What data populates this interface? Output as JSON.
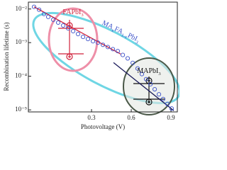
{
  "chart_data": {
    "type": "scatter",
    "x_label": "Photovoltage (V)",
    "y_label": "Recombination lifetime (s)",
    "xlim": [
      -0.177,
      0.948
    ],
    "xticks": [
      0.3,
      0.6,
      0.9
    ],
    "ylim": [
      8.7e-06,
      0.016
    ],
    "y_log": true,
    "yticks": [
      {
        "value": 1e-05,
        "label": "10⁻⁵"
      },
      {
        "value": 0.0001,
        "label": "10⁻⁴"
      },
      {
        "value": 0.001,
        "label": "10⁻³"
      },
      {
        "value": 0.01,
        "label": "10⁻²"
      }
    ],
    "series": [
      {
        "color": "#3a4fc8",
        "x": [
          -0.134,
          -0.096,
          -0.059,
          -0.027,
          0.011,
          0.048,
          0.086,
          0.123,
          0.161,
          0.198,
          0.236,
          0.273,
          0.311,
          0.348,
          0.386,
          0.423,
          0.461,
          0.498,
          0.536,
          0.573,
          0.611,
          0.648,
          0.68,
          0.712,
          0.745,
          0.777,
          0.809,
          0.841,
          0.873,
          0.905
        ],
        "values": [
          0.0116,
          0.00952,
          0.0071,
          0.00583,
          0.0048,
          0.00394,
          0.00324,
          0.00267,
          0.00219,
          0.0018,
          0.00148,
          0.00128,
          0.0011,
          0.001,
          0.00086,
          0.00074,
          0.00064,
          0.00056,
          0.00043,
          0.00034,
          0.00025,
          0.00017,
          0.000116,
          8.2e-05,
          5.8e-05,
          4.1e-05,
          2.9e-05,
          2.1e-05,
          1.5e-05,
          1.1e-05
        ]
      }
    ],
    "fit_lines": [
      {
        "color": "#d0213a",
        "x": [
          -0.134,
          0.52
        ],
        "values": [
          0.0116,
          0.000457
        ]
      },
      {
        "color": "#1a1a5a",
        "x": [
          0.466,
          0.921
        ],
        "values": [
          0.000254,
          9.5e-06
        ]
      }
    ],
    "annotations": [
      {
        "parts": [
          "FAPbI",
          "3"
        ],
        "color": "#d0213a"
      },
      {
        "parts": [
          "MA",
          "x",
          "FA",
          "1-x",
          "PbI",
          "3"
        ],
        "color": "#3a4fc8"
      },
      {
        "parts": [
          "MAPbI",
          "3"
        ],
        "color": "#111"
      }
    ]
  }
}
